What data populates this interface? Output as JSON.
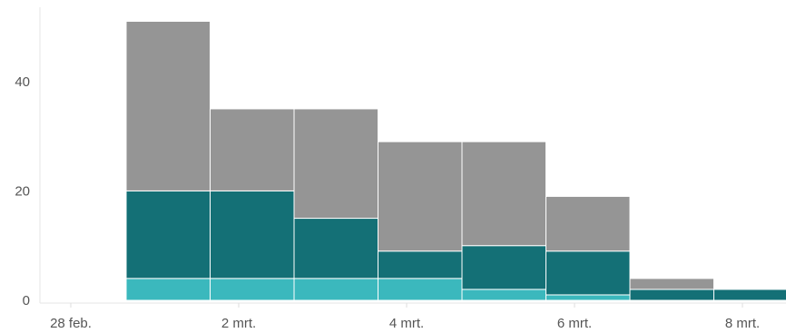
{
  "chart_data": {
    "type": "bar",
    "stacked": true,
    "title": "",
    "xlabel": "",
    "ylabel": "",
    "categories": [
      "1 mrt.",
      "2 mrt.",
      "3 mrt.",
      "4 mrt.",
      "5 mrt.",
      "6 mrt.",
      "7 mrt.",
      "8 mrt."
    ],
    "series": [
      {
        "color": "#3bb8bd",
        "values": [
          4,
          4,
          4,
          4,
          2,
          1,
          0,
          0
        ]
      },
      {
        "color": "#147076",
        "values": [
          16,
          16,
          11,
          5,
          8,
          8,
          2,
          2
        ]
      },
      {
        "color": "#959595",
        "values": [
          31,
          15,
          20,
          20,
          19,
          10,
          2,
          0
        ]
      }
    ],
    "x_ticks": [
      "28 feb.",
      "2 mrt.",
      "4 mrt.",
      "6 mrt.",
      "8 mrt."
    ],
    "y_ticks": [
      0,
      20,
      40
    ],
    "ylim": [
      0,
      52
    ],
    "grid": false,
    "legend": "none"
  }
}
